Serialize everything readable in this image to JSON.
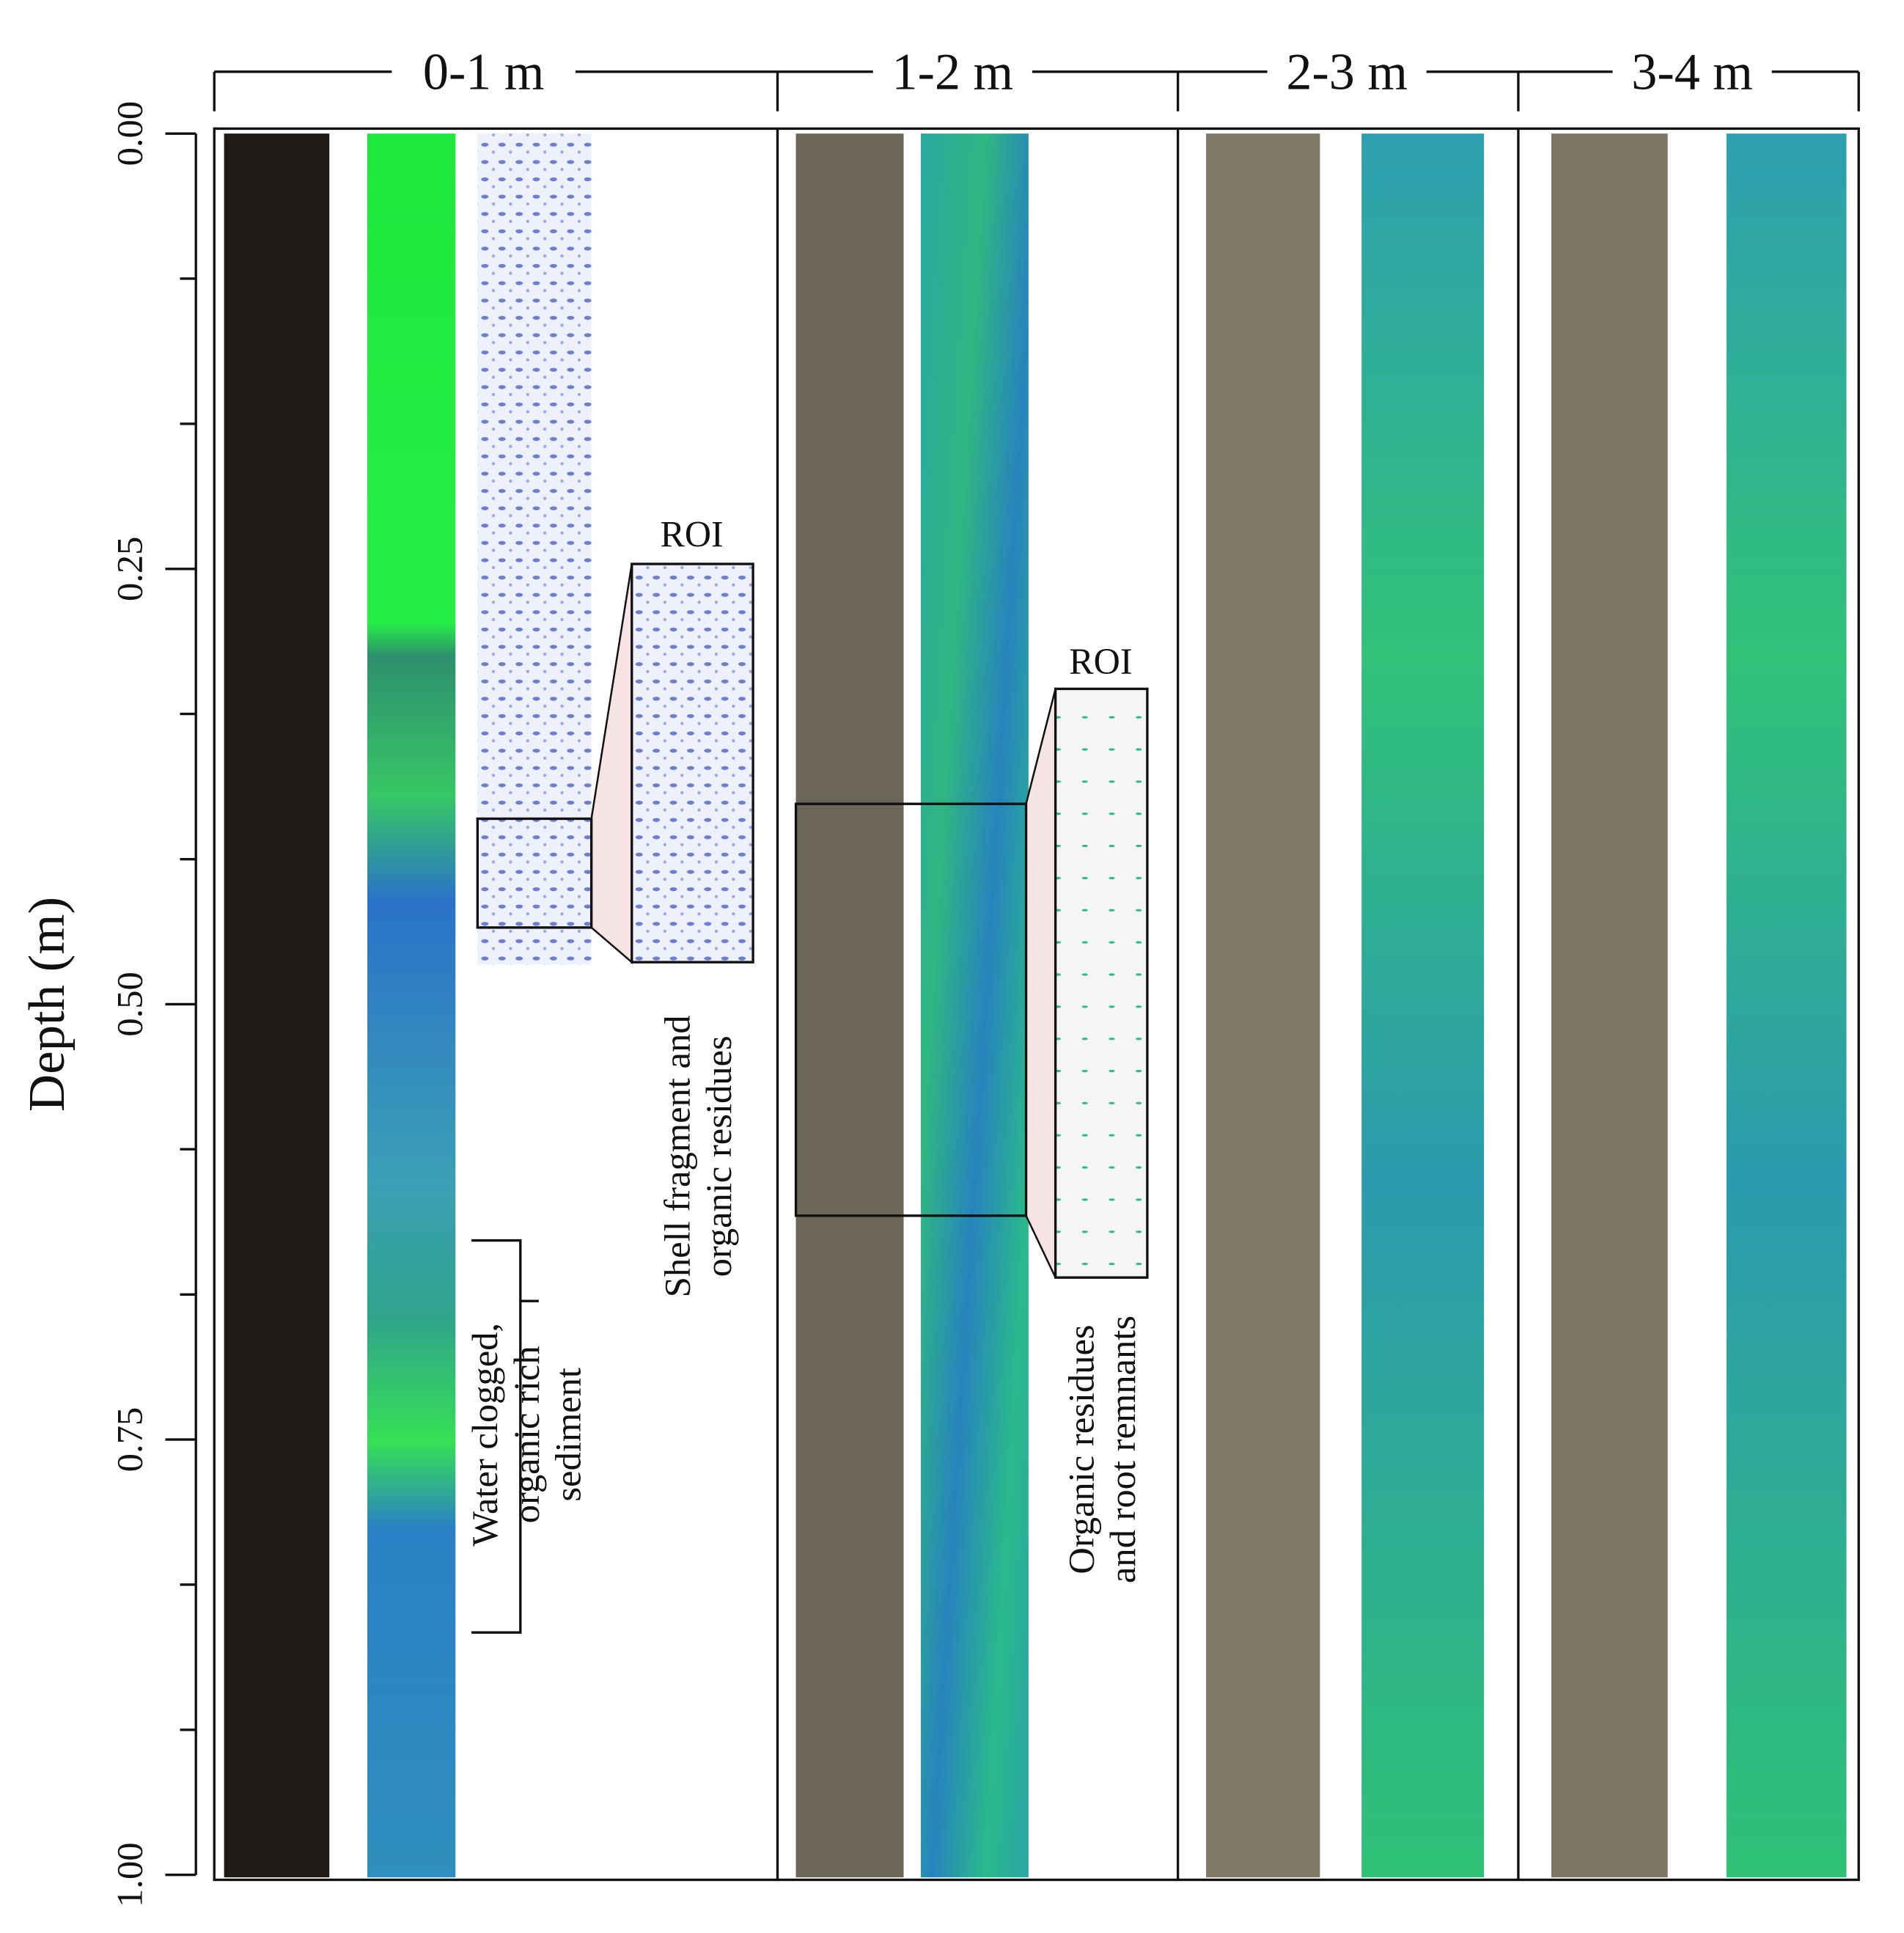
{
  "axis": {
    "label": "Depth (m)",
    "ylim": [
      0,
      1
    ],
    "ticks": [
      {
        "value": 0,
        "label": "0.00"
      },
      {
        "value": 0.25,
        "label": "0.25"
      },
      {
        "value": 0.5,
        "label": "0.50"
      },
      {
        "value": 0.75,
        "label": "0.75"
      },
      {
        "value": 1,
        "label": "1.00"
      }
    ],
    "minor_ticks": [
      0.0833,
      0.1667,
      0.3333,
      0.4167,
      0.5833,
      0.6667,
      0.8333,
      0.9167
    ]
  },
  "sections": [
    "0-1 m",
    "1-2 m",
    "2-3 m",
    "3-4 m"
  ],
  "roi_labels": [
    "ROI",
    "ROI"
  ],
  "annotations": {
    "shell": [
      "Shell fragment and",
      "organic residues"
    ],
    "water": [
      "Water clogged,",
      "organic rich",
      "sediment"
    ],
    "roots": [
      "Organic residues",
      "and root remnants"
    ]
  }
}
